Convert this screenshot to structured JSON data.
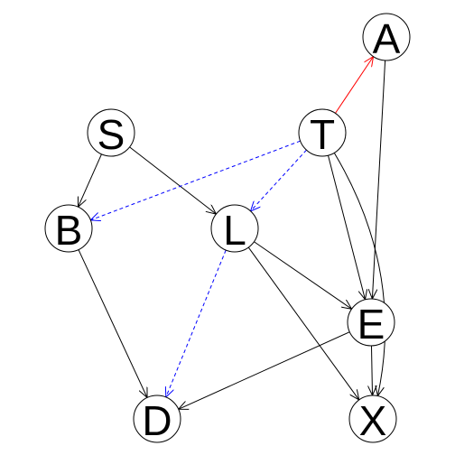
{
  "graph": {
    "nodes": [
      {
        "id": "A",
        "label": "A"
      },
      {
        "id": "S",
        "label": "S"
      },
      {
        "id": "T",
        "label": "T"
      },
      {
        "id": "B",
        "label": "B"
      },
      {
        "id": "L",
        "label": "L"
      },
      {
        "id": "E",
        "label": "E"
      },
      {
        "id": "D",
        "label": "D"
      },
      {
        "id": "X",
        "label": "X"
      }
    ],
    "edges": [
      {
        "from": "T",
        "to": "A",
        "style": "solid",
        "color": "#ff0000"
      },
      {
        "from": "A",
        "to": "E",
        "style": "solid",
        "color": "#000000"
      },
      {
        "from": "S",
        "to": "B",
        "style": "solid",
        "color": "#000000"
      },
      {
        "from": "S",
        "to": "L",
        "style": "solid",
        "color": "#000000"
      },
      {
        "from": "T",
        "to": "B",
        "style": "dashed",
        "color": "#0000ff"
      },
      {
        "from": "T",
        "to": "L",
        "style": "dashed",
        "color": "#0000ff"
      },
      {
        "from": "T",
        "to": "E",
        "style": "solid",
        "color": "#000000"
      },
      {
        "from": "T",
        "to": "X",
        "style": "solid",
        "color": "#000000"
      },
      {
        "from": "B",
        "to": "D",
        "style": "solid",
        "color": "#000000"
      },
      {
        "from": "L",
        "to": "D",
        "style": "dashed",
        "color": "#0000ff"
      },
      {
        "from": "L",
        "to": "E",
        "style": "solid",
        "color": "#000000"
      },
      {
        "from": "L",
        "to": "X",
        "style": "solid",
        "color": "#000000"
      },
      {
        "from": "E",
        "to": "D",
        "style": "solid",
        "color": "#000000"
      },
      {
        "from": "E",
        "to": "X",
        "style": "solid",
        "color": "#000000"
      }
    ]
  }
}
